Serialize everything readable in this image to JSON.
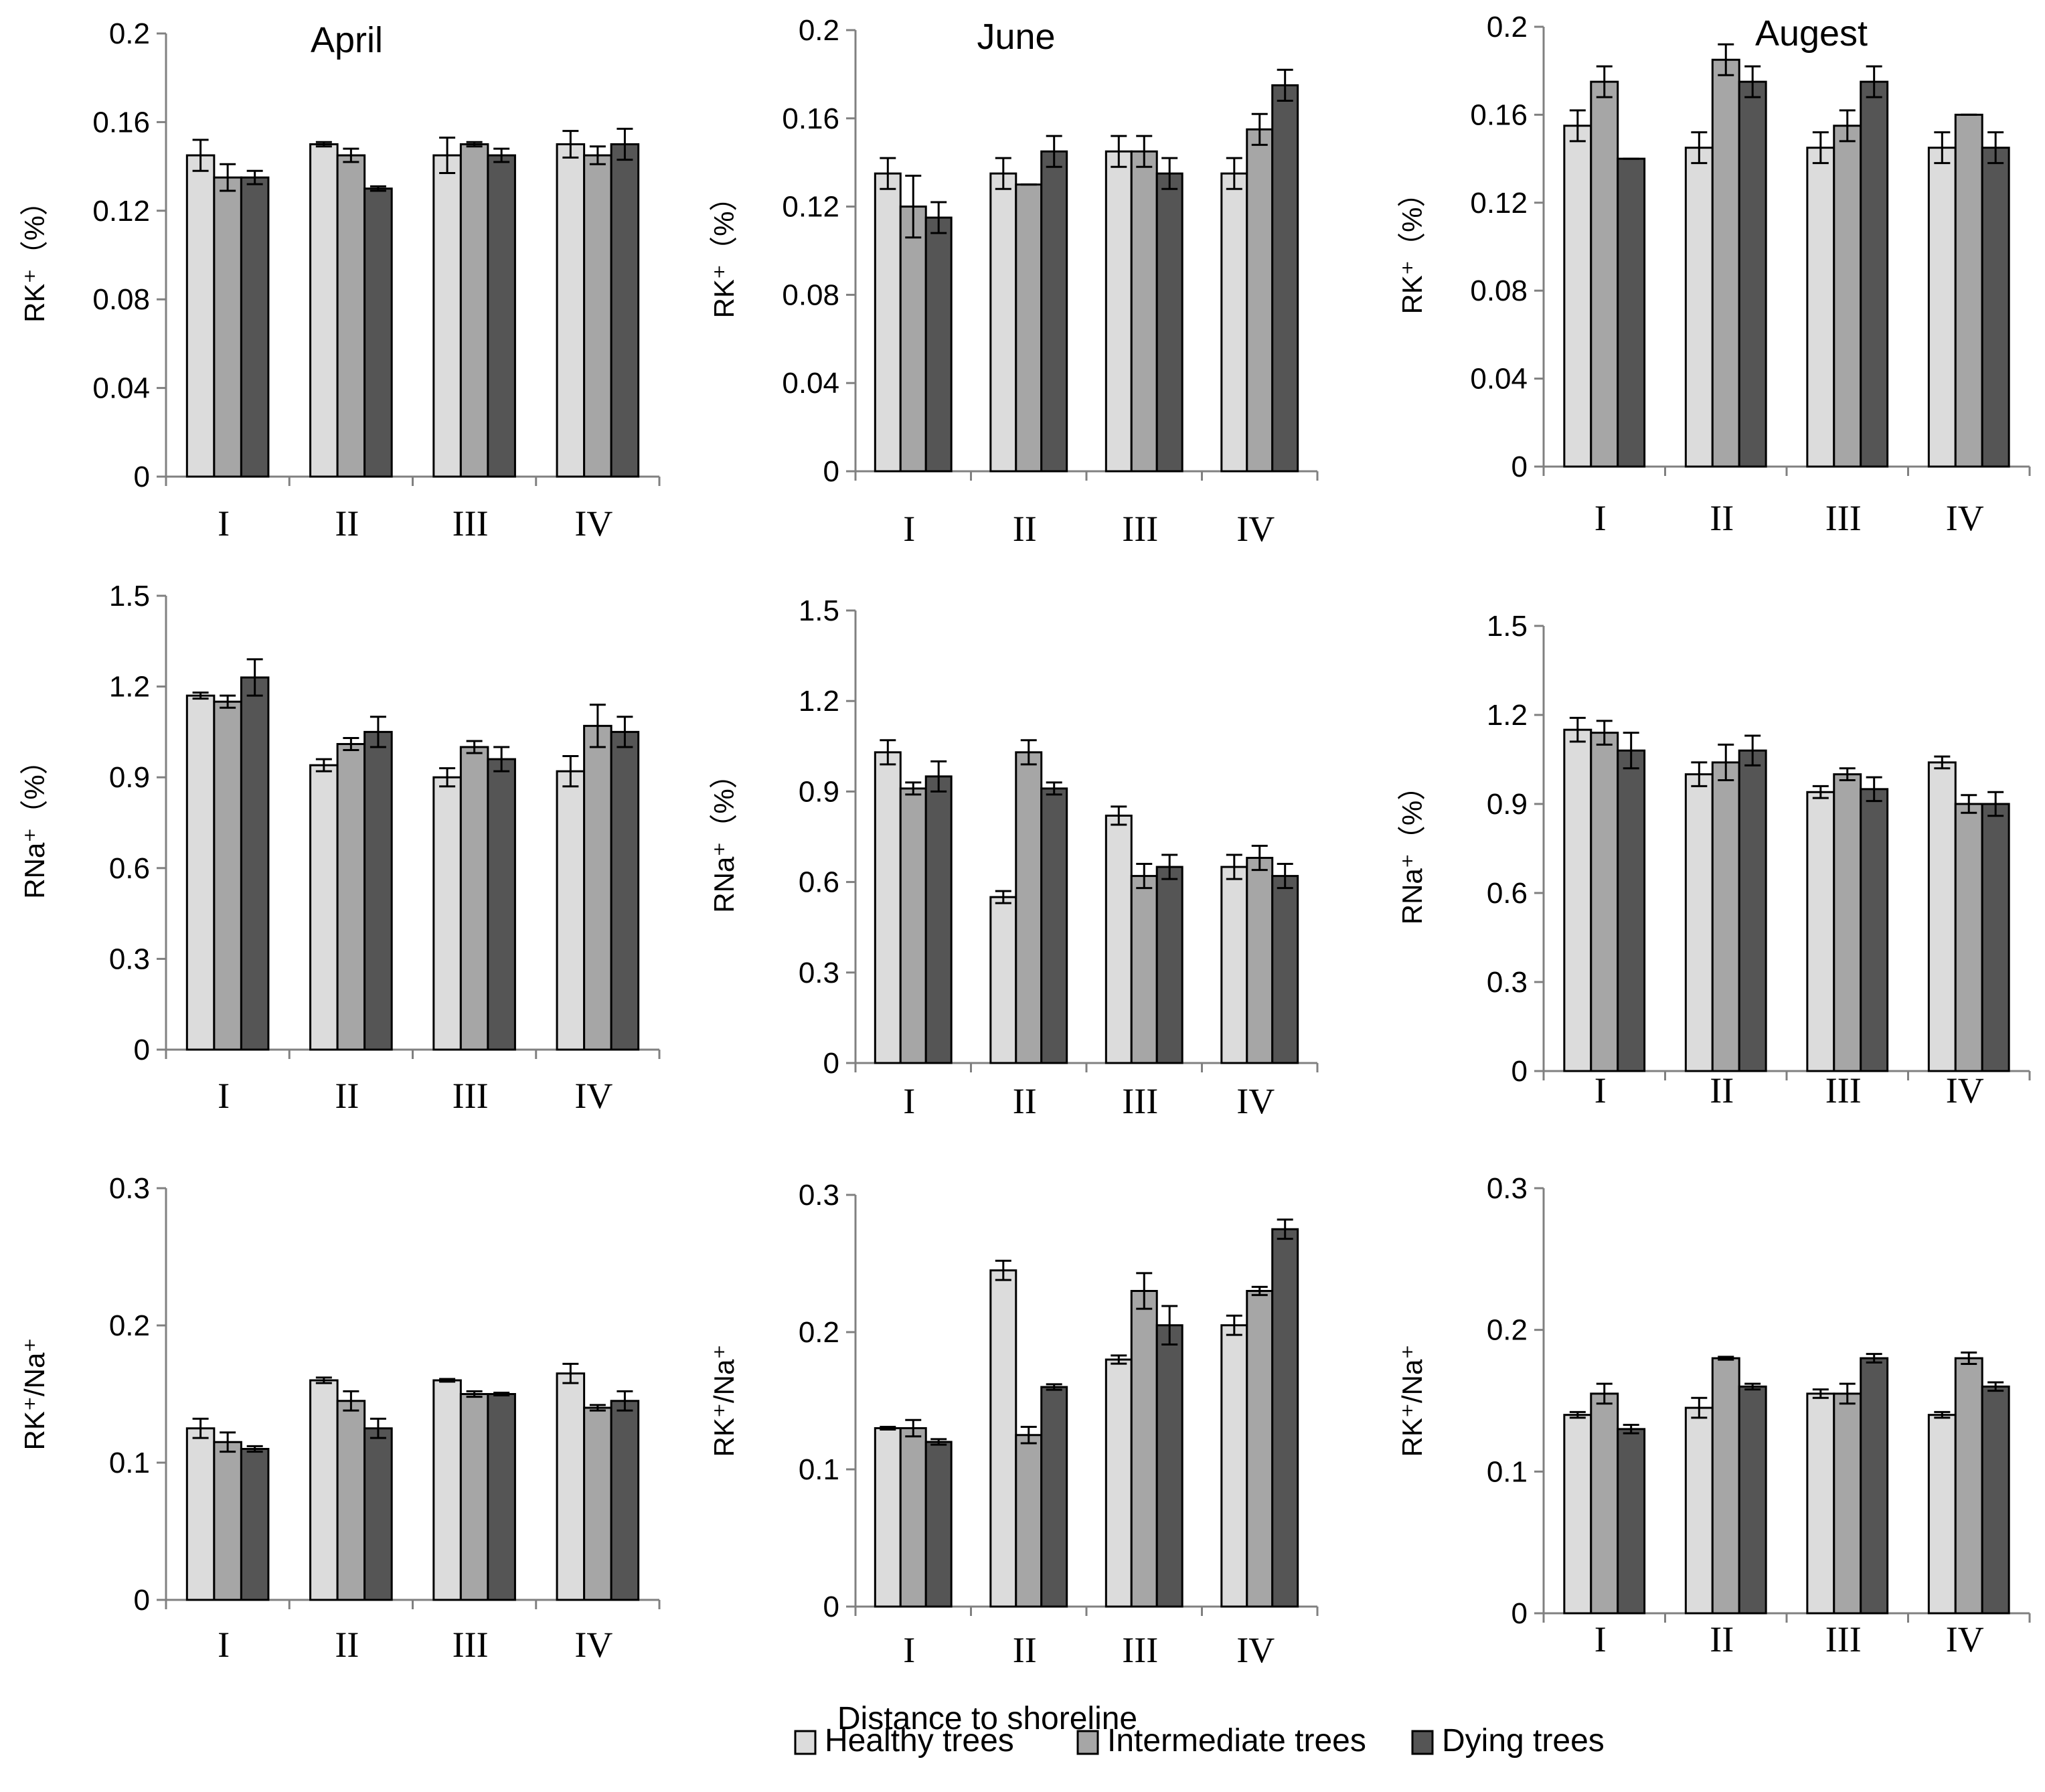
{
  "chart_data": {
    "type": "bar",
    "xlabel": "Distance to shoreline",
    "categories": [
      "I",
      "II",
      "III",
      "IV"
    ],
    "legend": {
      "placement": "bottom",
      "entries": [
        "Healthy trees",
        "Intermediate trees",
        "Dying trees"
      ]
    },
    "colors": {
      "Healthy trees": "#dcdcdc",
      "Intermediate trees": "#a6a6a6",
      "Dying trees": "#555555"
    },
    "error_bars": true,
    "panels": [
      {
        "title": "April",
        "ylabel": "RK⁺（%）",
        "ylim": [
          0,
          0.2
        ],
        "yticks": [
          "0",
          "0.04",
          "0.08",
          "0.12",
          "0.16",
          "0.2"
        ],
        "series": [
          {
            "name": "Healthy trees",
            "values": [
              0.145,
              0.15,
              0.145,
              0.15
            ],
            "errors": [
              0.007,
              0.001,
              0.008,
              0.006
            ]
          },
          {
            "name": "Intermediate trees",
            "values": [
              0.135,
              0.145,
              0.15,
              0.145
            ],
            "errors": [
              0.006,
              0.003,
              0.001,
              0.004
            ]
          },
          {
            "name": "Dying trees",
            "values": [
              0.135,
              0.13,
              0.145,
              0.15
            ],
            "errors": [
              0.003,
              0.001,
              0.003,
              0.007
            ]
          }
        ]
      },
      {
        "title": "June",
        "ylabel": "RK⁺（%）",
        "ylim": [
          0,
          0.2
        ],
        "yticks": [
          "0",
          "0.04",
          "0.08",
          "0.12",
          "0.16",
          "0.2"
        ],
        "series": [
          {
            "name": "Healthy trees",
            "values": [
              0.135,
              0.135,
              0.145,
              0.135
            ],
            "errors": [
              0.007,
              0.007,
              0.007,
              0.007
            ]
          },
          {
            "name": "Intermediate trees",
            "values": [
              0.12,
              0.13,
              0.145,
              0.155
            ],
            "errors": [
              0.014,
              0.0,
              0.007,
              0.007
            ]
          },
          {
            "name": "Dying trees",
            "values": [
              0.115,
              0.145,
              0.135,
              0.175
            ],
            "errors": [
              0.007,
              0.007,
              0.007,
              0.007
            ]
          }
        ]
      },
      {
        "title": "Augest",
        "ylabel": "RK⁺（%）",
        "ylim": [
          0,
          0.2
        ],
        "yticks": [
          "0",
          "0.04",
          "0.08",
          "0.12",
          "0.16",
          "0.2"
        ],
        "series": [
          {
            "name": "Healthy trees",
            "values": [
              0.155,
              0.145,
              0.145,
              0.145
            ],
            "errors": [
              0.007,
              0.007,
              0.007,
              0.007
            ]
          },
          {
            "name": "Intermediate trees",
            "values": [
              0.175,
              0.185,
              0.155,
              0.16
            ],
            "errors": [
              0.007,
              0.007,
              0.007,
              0.0
            ]
          },
          {
            "name": "Dying trees",
            "values": [
              0.14,
              0.175,
              0.175,
              0.145
            ],
            "errors": [
              0.0,
              0.007,
              0.007,
              0.007
            ]
          }
        ]
      },
      {
        "title": "",
        "ylabel": "RNa⁺（%）",
        "ylim": [
          0,
          1.5
        ],
        "yticks": [
          "0",
          "0.3",
          "0.6",
          "0.9",
          "1.2",
          "1.5"
        ],
        "series": [
          {
            "name": "Healthy trees",
            "values": [
              1.17,
              0.94,
              0.9,
              0.92
            ],
            "errors": [
              0.01,
              0.02,
              0.03,
              0.05
            ]
          },
          {
            "name": "Intermediate trees",
            "values": [
              1.15,
              1.01,
              1.0,
              1.07
            ],
            "errors": [
              0.02,
              0.02,
              0.02,
              0.07
            ]
          },
          {
            "name": "Dying trees",
            "values": [
              1.23,
              1.05,
              0.96,
              1.05
            ],
            "errors": [
              0.06,
              0.05,
              0.04,
              0.05
            ]
          }
        ]
      },
      {
        "title": "",
        "ylabel": "RNa⁺（%）",
        "ylim": [
          0,
          1.5
        ],
        "yticks": [
          "0",
          "0.3",
          "0.6",
          "0.9",
          "1.2",
          "1.5"
        ],
        "series": [
          {
            "name": "Healthy trees",
            "values": [
              1.03,
              0.55,
              0.82,
              0.65
            ],
            "errors": [
              0.04,
              0.02,
              0.03,
              0.04
            ]
          },
          {
            "name": "Intermediate trees",
            "values": [
              0.91,
              1.03,
              0.62,
              0.68
            ],
            "errors": [
              0.02,
              0.04,
              0.04,
              0.04
            ]
          },
          {
            "name": "Dying trees",
            "values": [
              0.95,
              0.91,
              0.65,
              0.62
            ],
            "errors": [
              0.05,
              0.02,
              0.04,
              0.04
            ]
          }
        ]
      },
      {
        "title": "",
        "ylabel": "RNa⁺（%）",
        "ylim": [
          0,
          1.5
        ],
        "yticks": [
          "0",
          "0.3",
          "0.6",
          "0.9",
          "1.2",
          "1.5"
        ],
        "series": [
          {
            "name": "Healthy trees",
            "values": [
              1.15,
              1.0,
              0.94,
              1.04
            ],
            "errors": [
              0.04,
              0.04,
              0.02,
              0.02
            ]
          },
          {
            "name": "Intermediate trees",
            "values": [
              1.14,
              1.04,
              1.0,
              0.9
            ],
            "errors": [
              0.04,
              0.06,
              0.02,
              0.03
            ]
          },
          {
            "name": "Dying trees",
            "values": [
              1.08,
              1.08,
              0.95,
              0.9
            ],
            "errors": [
              0.06,
              0.05,
              0.04,
              0.04
            ]
          }
        ]
      },
      {
        "title": "",
        "ylabel": "RK⁺/Na⁺",
        "ylim": [
          0,
          0.3
        ],
        "yticks": [
          "0",
          "0.1",
          "0.2",
          "0.3"
        ],
        "series": [
          {
            "name": "Healthy trees",
            "values": [
              0.125,
              0.16,
              0.16,
              0.165
            ],
            "errors": [
              0.007,
              0.002,
              0.001,
              0.007
            ]
          },
          {
            "name": "Intermediate trees",
            "values": [
              0.115,
              0.145,
              0.15,
              0.14
            ],
            "errors": [
              0.007,
              0.007,
              0.002,
              0.002
            ]
          },
          {
            "name": "Dying trees",
            "values": [
              0.11,
              0.125,
              0.15,
              0.145
            ],
            "errors": [
              0.002,
              0.007,
              0.001,
              0.007
            ]
          }
        ]
      },
      {
        "title": "",
        "ylabel": "RK⁺/Na⁺",
        "ylim": [
          0,
          0.3
        ],
        "yticks": [
          "0",
          "0.1",
          "0.2",
          "0.3"
        ],
        "series": [
          {
            "name": "Healthy trees",
            "values": [
              0.13,
              0.245,
              0.18,
              0.205
            ],
            "errors": [
              0.001,
              0.007,
              0.003,
              0.007
            ]
          },
          {
            "name": "Intermediate trees",
            "values": [
              0.13,
              0.125,
              0.23,
              0.23
            ],
            "errors": [
              0.006,
              0.006,
              0.013,
              0.003
            ]
          },
          {
            "name": "Dying trees",
            "values": [
              0.12,
              0.16,
              0.205,
              0.275
            ],
            "errors": [
              0.002,
              0.002,
              0.014,
              0.007
            ]
          }
        ]
      },
      {
        "title": "",
        "ylabel": "RK⁺/Na⁺",
        "ylim": [
          0,
          0.3
        ],
        "yticks": [
          "0",
          "0.1",
          "0.2",
          "0.3"
        ],
        "series": [
          {
            "name": "Healthy trees",
            "values": [
              0.14,
              0.145,
              0.155,
              0.14
            ],
            "errors": [
              0.002,
              0.007,
              0.003,
              0.002
            ]
          },
          {
            "name": "Intermediate trees",
            "values": [
              0.155,
              0.18,
              0.155,
              0.18
            ],
            "errors": [
              0.007,
              0.001,
              0.007,
              0.004
            ]
          },
          {
            "name": "Dying trees",
            "values": [
              0.13,
              0.16,
              0.18,
              0.16
            ],
            "errors": [
              0.003,
              0.002,
              0.003,
              0.003
            ]
          }
        ]
      }
    ]
  }
}
